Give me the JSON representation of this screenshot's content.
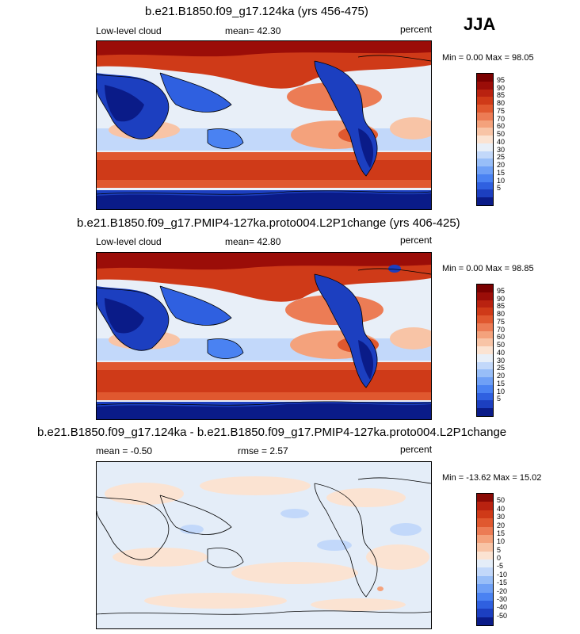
{
  "season": "JJA",
  "colors": {
    "abs_scale": [
      "#0a1b88",
      "#1c3fc0",
      "#2f60e0",
      "#4a82f2",
      "#6fa0f6",
      "#98bef8",
      "#c2d8fa",
      "#e8eff8",
      "#fbe3d2",
      "#f8c4a6",
      "#f4a27c",
      "#ec7c55",
      "#e0582f",
      "#cf3a18",
      "#b92210",
      "#9b0d08",
      "#7a0000"
    ],
    "diff_scale": [
      "#0a1b88",
      "#1c3fc0",
      "#2f60e0",
      "#4a82f2",
      "#6fa0f6",
      "#98bef8",
      "#c2d8fa",
      "#e4edf8",
      "#fbe3d2",
      "#f8c4a6",
      "#f4a27c",
      "#ec7c55",
      "#e0582f",
      "#cf3a18",
      "#b92210",
      "#8a0a05"
    ],
    "land_outline": "#000000"
  },
  "chart_data": [
    {
      "type": "heatmap",
      "title": "b.e21.B1850.f09_g17.124ka (yrs 456-475)",
      "left_label": "Low-level cloud",
      "mean_label": "mean=  42.30",
      "units_label": "percent",
      "minmax_label": "Min =   0.00 Max =  98.05",
      "mean": 42.3,
      "min": 0.0,
      "max": 98.05,
      "colorbar_levels": [
        "95",
        "90",
        "85",
        "80",
        "75",
        "70",
        "60",
        "50",
        "40",
        "30",
        "25",
        "20",
        "15",
        "10",
        "5"
      ]
    },
    {
      "type": "heatmap",
      "title": "b.e21.B1850.f09_g17.PMIP4-127ka.proto004.L2P1change (yrs 406-425)",
      "left_label": "Low-level cloud",
      "mean_label": "mean=  42.80",
      "units_label": "percent",
      "minmax_label": "Min =   0.00 Max =  98.85",
      "mean": 42.8,
      "min": 0.0,
      "max": 98.85,
      "colorbar_levels": [
        "95",
        "90",
        "85",
        "80",
        "75",
        "70",
        "60",
        "50",
        "40",
        "30",
        "25",
        "20",
        "15",
        "10",
        "5"
      ]
    },
    {
      "type": "heatmap",
      "title": "b.e21.B1850.f09_g17.124ka - b.e21.B1850.f09_g17.PMIP4-127ka.proto004.L2P1change",
      "left_label": "mean =  -0.50",
      "mean_label": "rmse =   2.57",
      "units_label": "percent",
      "minmax_label": "Min = -13.62 Max =  15.02",
      "mean": -0.5,
      "rmse": 2.57,
      "min": -13.62,
      "max": 15.02,
      "colorbar_levels": [
        "50",
        "40",
        "30",
        "20",
        "15",
        "10",
        "5",
        "0",
        "-5",
        "-10",
        "-15",
        "-20",
        "-30",
        "-40",
        "-50"
      ]
    }
  ]
}
